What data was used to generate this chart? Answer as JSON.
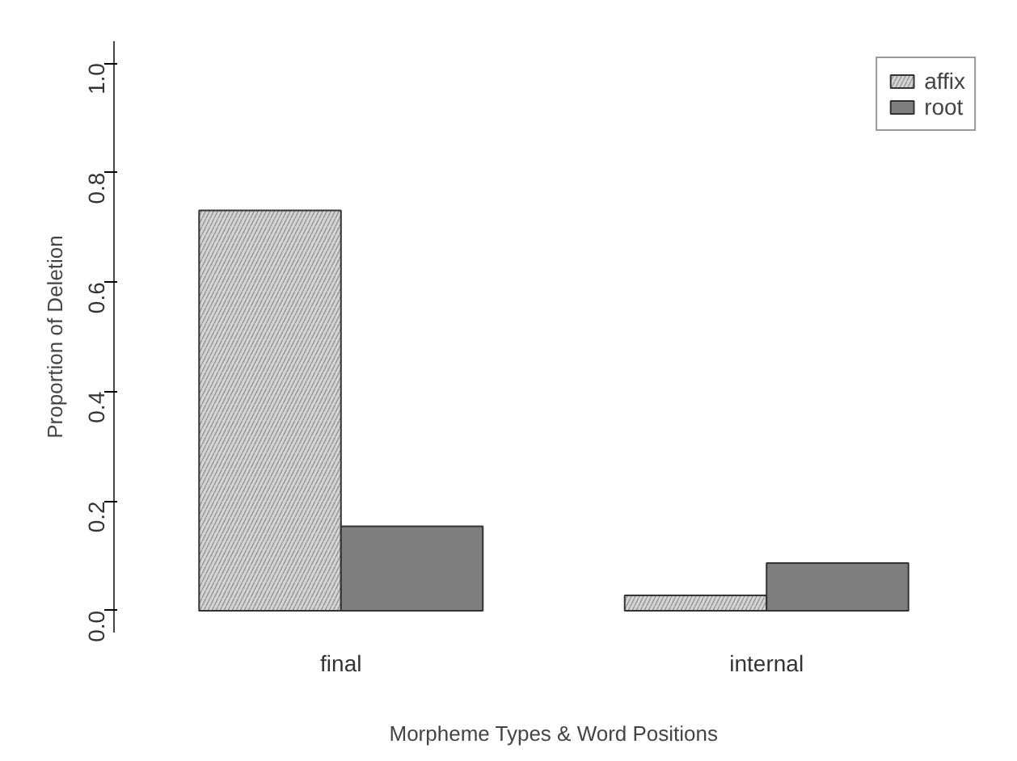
{
  "chart_data": {
    "type": "bar",
    "xlabel": "Morpheme Types & Word Positions",
    "ylabel": "Proportion of Deletion",
    "categories": [
      "final",
      "internal"
    ],
    "series": [
      {
        "name": "affix",
        "color": "#d4d4d4",
        "values": [
          0.731,
          0.028
        ]
      },
      {
        "name": "root",
        "color": "#7f7f7f",
        "values": [
          0.154,
          0.087
        ]
      }
    ],
    "ylim": [
      -0.04,
      1.04
    ],
    "yticks": [
      {
        "value": 0,
        "label": "0.0"
      },
      0.2,
      0.4,
      0.6,
      0.8,
      {
        "value": 1,
        "label": "1.0"
      }
    ],
    "grid": false,
    "legend": "top right"
  }
}
